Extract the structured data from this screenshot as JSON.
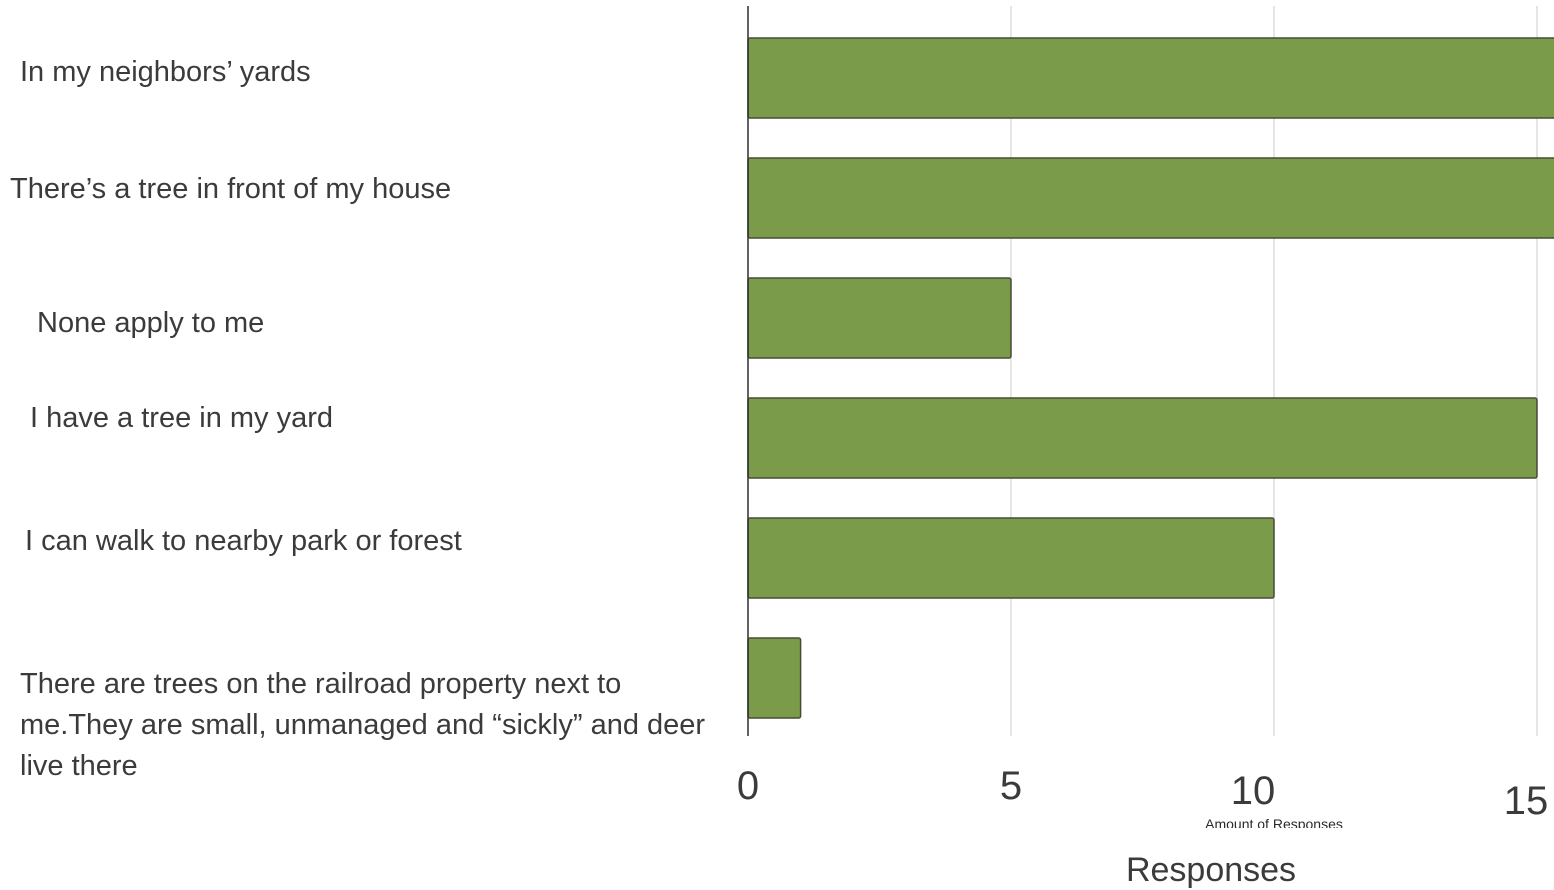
{
  "chart_data": {
    "type": "bar",
    "orientation": "horizontal",
    "categories": [
      "In my neighbors’ yards",
      "There’s a tree in front of my house",
      "None apply to me",
      "I have a tree in my yard",
      "I can walk to nearby park or forest",
      "There are trees on the railroad property next to me.They are small, unmanaged and “sickly” and deer live there"
    ],
    "values": [
      16,
      16,
      5,
      15,
      10,
      1
    ],
    "xlabel": "Responses",
    "xlabel_secondary": "Amount of Responses",
    "xticks": [
      "0",
      "5",
      "10",
      "15"
    ],
    "xlim": [
      0,
      15.3
    ],
    "grid": "vertical",
    "bar_color": "#7a9c4a",
    "bar_edge_color": "#4a4a3a",
    "grid_color": "#d4d4d4"
  }
}
